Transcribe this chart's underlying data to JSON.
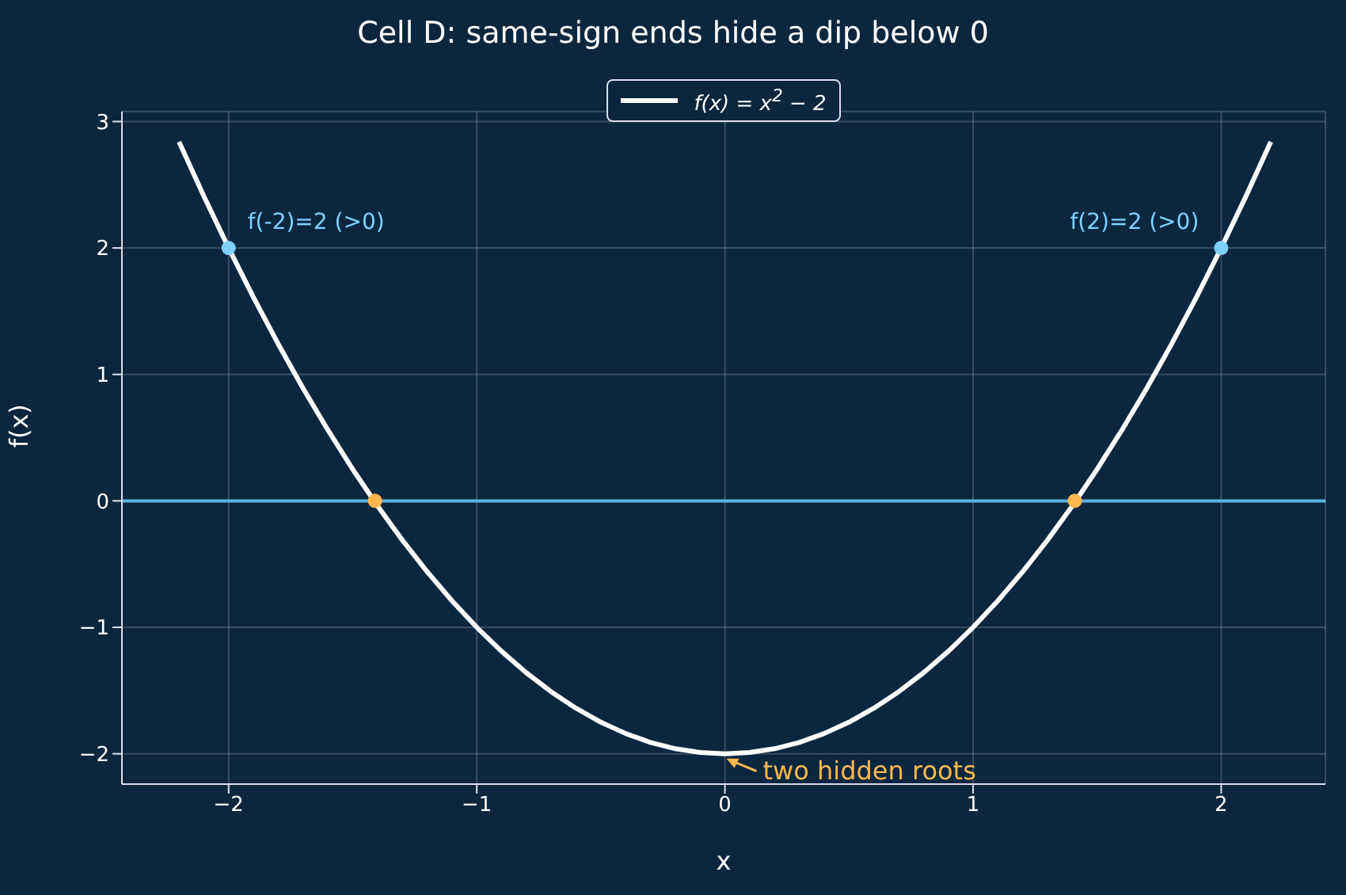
{
  "chart_data": {
    "type": "line",
    "title": "Cell D: same-sign ends hide a dip below 0",
    "xlabel": "x",
    "ylabel": "f(x)",
    "xlim": [
      -2.43,
      2.42
    ],
    "ylim": [
      -2.24,
      3.08
    ],
    "xticks": [
      -2,
      -1,
      0,
      1,
      2
    ],
    "yticks": [
      -2,
      -1,
      0,
      1,
      2,
      3
    ],
    "grid": true,
    "legend": "top",
    "series": [
      {
        "name": "f(x) = x$^{2}$ − 2",
        "color": "#ffffff",
        "marker": "none",
        "x": [
          -2.2,
          -2.1,
          -2.0,
          -1.9,
          -1.8,
          -1.7,
          -1.6,
          -1.5,
          -1.4,
          -1.3,
          -1.2,
          -1.1,
          -1.0,
          -0.9,
          -0.8,
          -0.7,
          -0.6,
          -0.5,
          -0.4,
          -0.3,
          -0.2,
          -0.1,
          0,
          0.1,
          0.2,
          0.3,
          0.4,
          0.5,
          0.6,
          0.7,
          0.8,
          0.9,
          1.0,
          1.1,
          1.2,
          1.3,
          1.4,
          1.5,
          1.6,
          1.7,
          1.8,
          1.9,
          2.0,
          2.1,
          2.2
        ],
        "values": [
          2.84,
          2.41,
          2.0,
          1.61,
          1.24,
          0.89,
          0.56,
          0.25,
          -0.04,
          -0.31,
          -0.56,
          -0.79,
          -1.0,
          -1.19,
          -1.36,
          -1.51,
          -1.64,
          -1.75,
          -1.84,
          -1.91,
          -1.96,
          -1.99,
          -2.0,
          -1.99,
          -1.96,
          -1.91,
          -1.84,
          -1.75,
          -1.64,
          -1.51,
          -1.36,
          -1.19,
          -1.0,
          -0.79,
          -0.56,
          -0.31,
          -0.04,
          0.25,
          0.56,
          0.89,
          1.24,
          1.61,
          2.0,
          2.41,
          2.84
        ]
      },
      {
        "type": "scatter",
        "color": "#7fd0ff",
        "marker": "circle",
        "x": [
          -2,
          2
        ],
        "values": [
          2,
          2
        ]
      },
      {
        "type": "scatter",
        "color": "#ffb84d",
        "marker": "circle",
        "x": [
          -1.41,
          1.41
        ],
        "values": [
          0,
          0
        ]
      }
    ],
    "ref_lines": [
      {
        "axis": "y",
        "value": 0,
        "color": "#5fb3e0"
      }
    ],
    "annotations": [
      {
        "text": "f(-2)=2 (>0)",
        "x": -2,
        "y": 2
      },
      {
        "text": "f(2)=2 (>0)",
        "x": 2,
        "y": 2
      },
      {
        "text": "two hidden roots",
        "x": 0,
        "y": -2
      }
    ]
  }
}
